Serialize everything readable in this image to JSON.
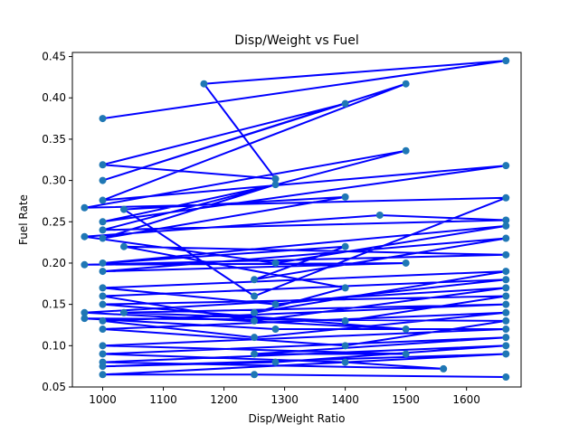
{
  "chart_data": {
    "type": "line",
    "title": "Disp/Weight vs Fuel",
    "xlabel": "Disp/Weight Ratio",
    "ylabel": "Fuel Rate",
    "xlim": [
      950,
      1690
    ],
    "ylim": [
      0.05,
      0.455
    ],
    "xticks": [
      1000,
      1100,
      1200,
      1300,
      1400,
      1500,
      1600,
      1700
    ],
    "yticks": [
      0.05,
      0.1,
      0.15,
      0.2,
      0.25,
      0.3,
      0.35,
      0.4,
      0.45
    ],
    "grid": false,
    "line_color": "#0000ff",
    "marker_color": "#1f77b4",
    "series": [
      {
        "x": [
          1000,
          1665,
          1167,
          1285,
          1000,
          1400,
          1000,
          1500,
          1000,
          1665,
          1000,
          1285,
          1000,
          1400,
          1035,
          1250,
          1665,
          970,
          1500,
          1000,
          1665,
          1457,
          970,
          1285,
          1665,
          1000,
          1400,
          1250,
          1665,
          1000,
          1500,
          970,
          1665,
          1035,
          1400,
          1250,
          1665,
          1000,
          1285,
          1665,
          1000,
          1250,
          1665,
          970,
          1500,
          1000,
          1665,
          1400,
          1035,
          1665,
          1000,
          1250,
          1665,
          1000,
          1400,
          1665,
          970,
          1285,
          1665,
          1000,
          1500,
          1250,
          1665,
          1000,
          1400,
          1562,
          1000,
          1665,
          1285,
          1000,
          1665,
          1000,
          1250,
          1665
        ],
        "y": [
          0.375,
          0.445,
          0.417,
          0.302,
          0.319,
          0.393,
          0.3,
          0.417,
          0.276,
          0.318,
          0.25,
          0.295,
          0.23,
          0.28,
          0.265,
          0.16,
          0.279,
          0.267,
          0.336,
          0.24,
          0.252,
          0.258,
          0.232,
          0.2,
          0.245,
          0.2,
          0.22,
          0.18,
          0.23,
          0.19,
          0.2,
          0.198,
          0.21,
          0.22,
          0.17,
          0.14,
          0.19,
          0.17,
          0.15,
          0.18,
          0.16,
          0.13,
          0.17,
          0.14,
          0.12,
          0.15,
          0.16,
          0.13,
          0.14,
          0.15,
          0.13,
          0.11,
          0.14,
          0.12,
          0.1,
          0.13,
          0.133,
          0.12,
          0.12,
          0.1,
          0.09,
          0.09,
          0.11,
          0.09,
          0.08,
          0.072,
          0.08,
          0.1,
          0.08,
          0.075,
          0.09,
          0.065,
          0.065,
          0.062
        ]
      }
    ]
  }
}
